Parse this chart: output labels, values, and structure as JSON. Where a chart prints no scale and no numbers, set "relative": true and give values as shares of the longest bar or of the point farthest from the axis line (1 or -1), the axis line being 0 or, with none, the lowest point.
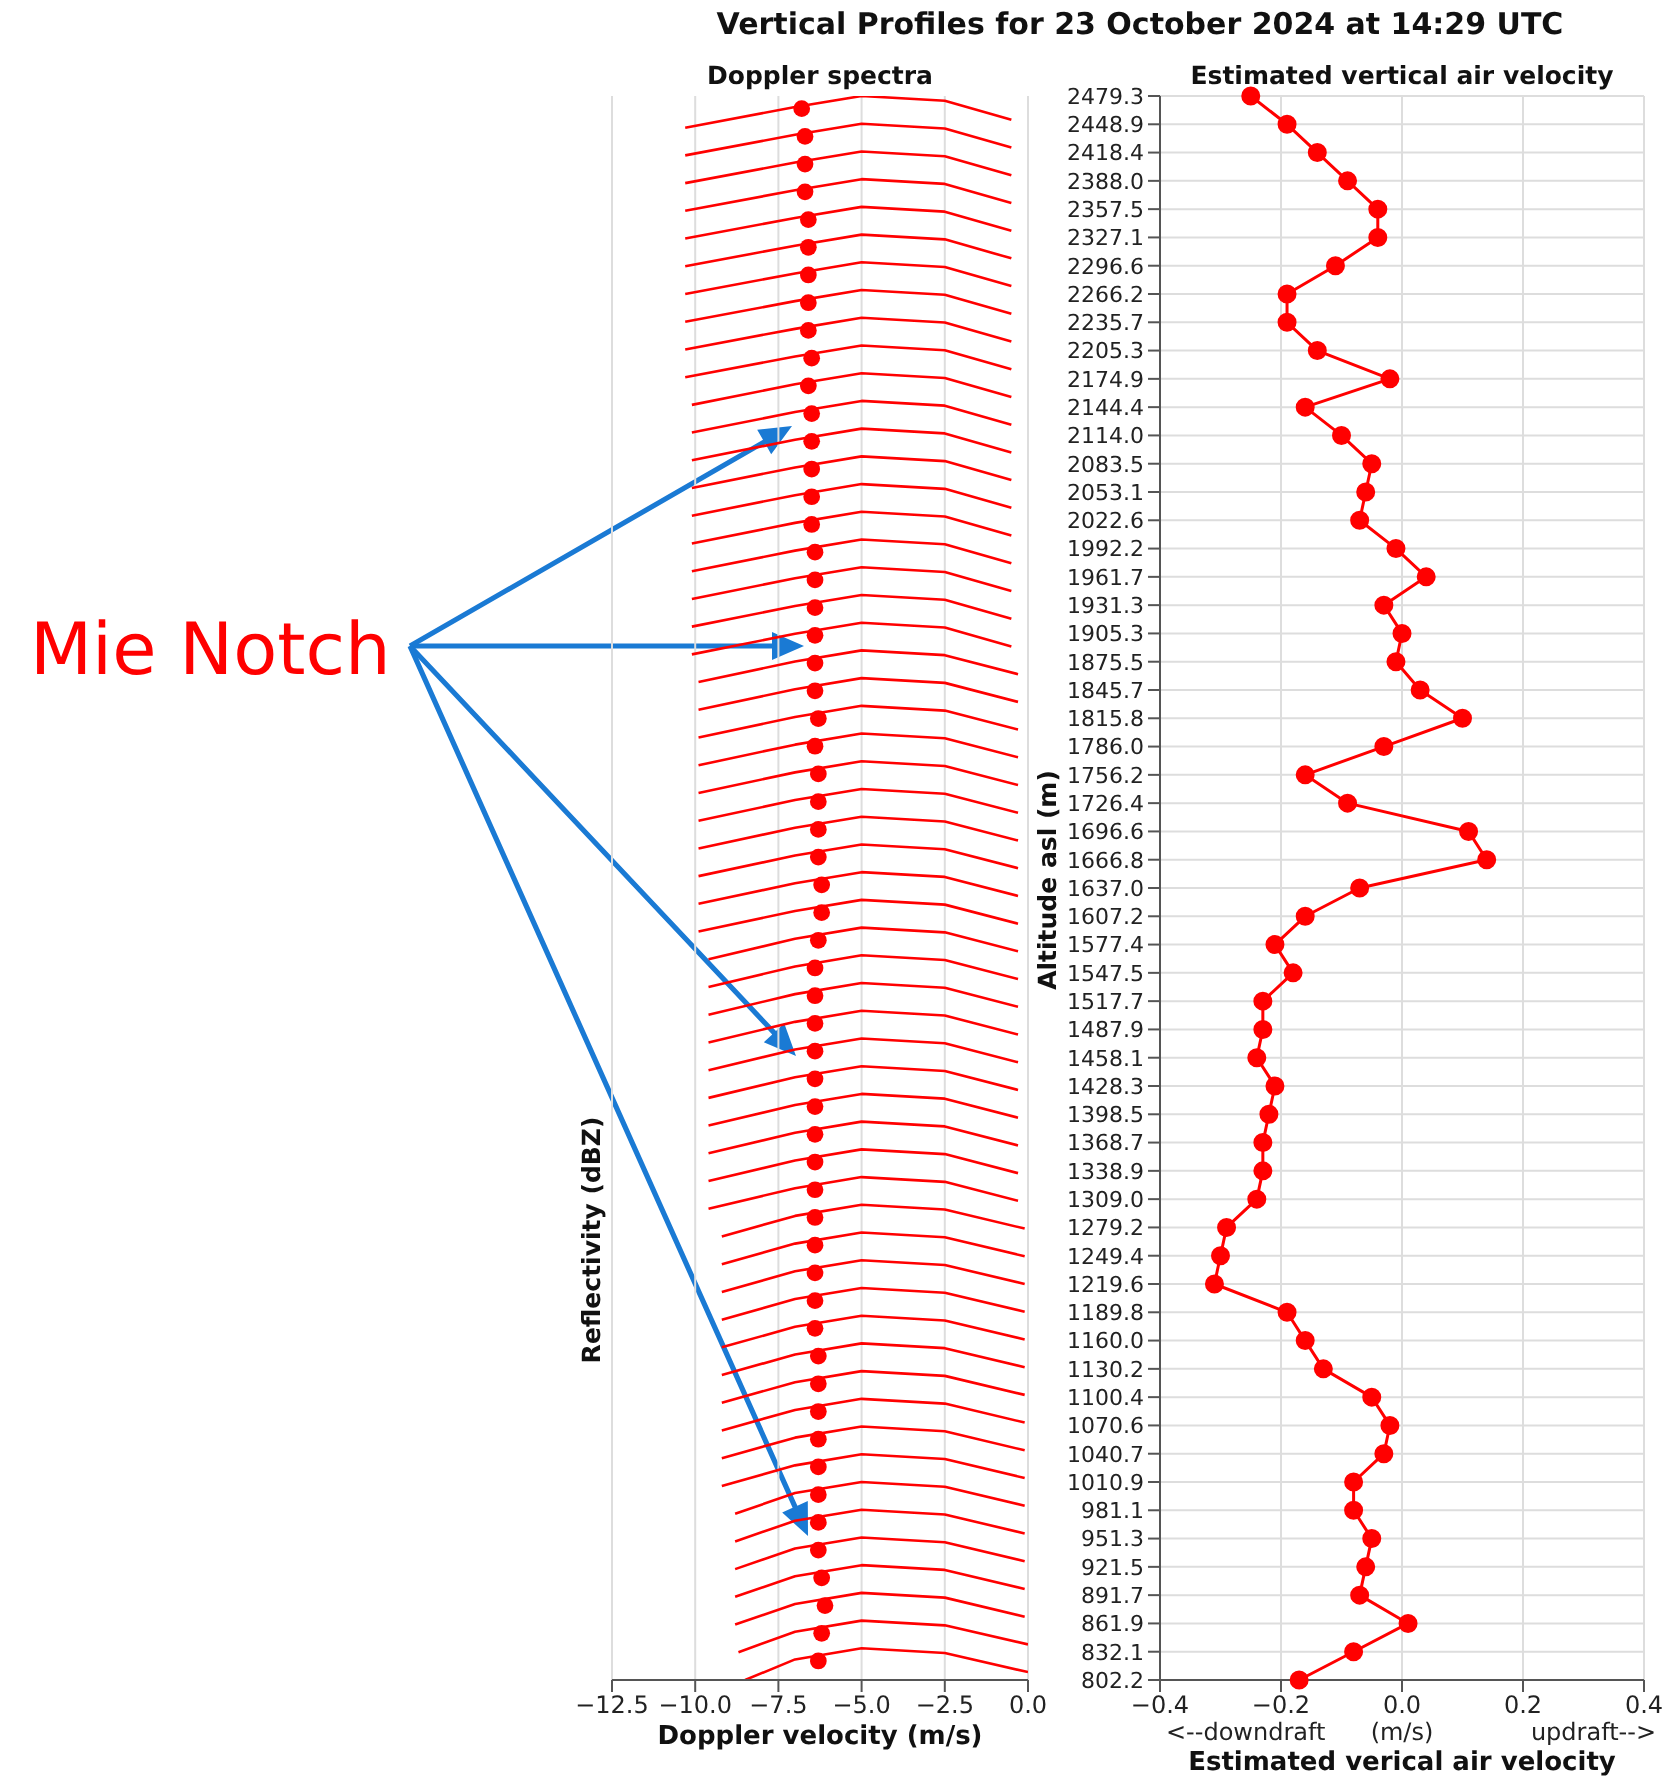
{
  "chart_data": [
    {
      "type": "line",
      "title": "Vertical Profiles for 23 October 2024 at 14:29 UTC",
      "subtitle": "Doppler spectra",
      "xlabel": "Doppler velocity (m/s)",
      "ylabel": "Reflectivity (dBZ)",
      "relative": true,
      "xlim": [
        -12.5,
        0
      ],
      "xticks": [
        {
          "value": -12.5,
          "label": "−12.5"
        },
        {
          "value": -10,
          "label": "−10.0"
        },
        {
          "value": -7.5,
          "label": "−7.5"
        },
        {
          "value": -5,
          "label": "−5.0"
        },
        {
          "value": -2.5,
          "label": "−2.5"
        },
        {
          "value": 0,
          "label": "0.0"
        }
      ],
      "grid": "x",
      "marker": "none",
      "annotations": [
        "Mie Notch"
      ],
      "series": [
        {
          "color": "#ff0000",
          "x": [
            -10.3,
            -7,
            -5,
            -2.5,
            -0.5
          ],
          "values": [
            0.98,
            0.993,
            1.0,
            0.997,
            0.985
          ]
        },
        {
          "color": "#ff0000",
          "x": [
            -10.3,
            -7,
            -5,
            -2.5,
            -0.5
          ],
          "values": [
            0.9625,
            0.9755,
            0.9825,
            0.9795,
            0.9675
          ]
        },
        {
          "color": "#ff0000",
          "x": [
            -10.3,
            -7,
            -5,
            -2.5,
            -0.5
          ],
          "values": [
            0.945,
            0.958,
            0.965,
            0.962,
            0.95
          ]
        },
        {
          "color": "#ff0000",
          "x": [
            -10.3,
            -7,
            -5,
            -2.5,
            -0.5
          ],
          "values": [
            0.9275,
            0.9405,
            0.9475,
            0.9445,
            0.9325
          ]
        },
        {
          "color": "#ff0000",
          "x": [
            -10.3,
            -7,
            -5,
            -2.5,
            -0.5
          ],
          "values": [
            0.91,
            0.923,
            0.93,
            0.927,
            0.915
          ]
        },
        {
          "color": "#ff0000",
          "x": [
            -10.3,
            -7,
            -5,
            -2.5,
            -0.5
          ],
          "values": [
            0.8925,
            0.9055,
            0.9125,
            0.9095,
            0.8975
          ]
        },
        {
          "color": "#ff0000",
          "x": [
            -10.3,
            -7,
            -5,
            -2.5,
            -0.5
          ],
          "values": [
            0.875,
            0.888,
            0.895,
            0.892,
            0.88
          ]
        },
        {
          "color": "#ff0000",
          "x": [
            -10.3,
            -7,
            -5,
            -2.5,
            -0.5
          ],
          "values": [
            0.8575,
            0.8705,
            0.8775,
            0.8745,
            0.8625
          ]
        },
        {
          "color": "#ff0000",
          "x": [
            -10.3,
            -7,
            -5,
            -2.5,
            -0.5
          ],
          "values": [
            0.84,
            0.853,
            0.86,
            0.857,
            0.845
          ]
        },
        {
          "color": "#ff0000",
          "x": [
            -10.3,
            -7,
            -5,
            -2.5,
            -0.5
          ],
          "values": [
            0.8225,
            0.8355,
            0.8425,
            0.8395,
            0.8275
          ]
        },
        {
          "color": "#ff0000",
          "x": [
            -10.1,
            -7,
            -5,
            -2.5,
            -0.5
          ],
          "values": [
            0.805,
            0.818,
            0.825,
            0.822,
            0.81
          ]
        },
        {
          "color": "#ff0000",
          "x": [
            -10.1,
            -7,
            -5,
            -2.5,
            -0.5
          ],
          "values": [
            0.7875,
            0.8005,
            0.8075,
            0.8045,
            0.7925
          ]
        },
        {
          "color": "#ff0000",
          "x": [
            -10.1,
            -7,
            -5,
            -2.5,
            -0.5
          ],
          "values": [
            0.77,
            0.783,
            0.79,
            0.787,
            0.775
          ]
        },
        {
          "color": "#ff0000",
          "x": [
            -10.1,
            -7,
            -5,
            -2.5,
            -0.5
          ],
          "values": [
            0.7525,
            0.7655,
            0.7725,
            0.7695,
            0.7575
          ]
        },
        {
          "color": "#ff0000",
          "x": [
            -10.1,
            -7,
            -5,
            -2.5,
            -0.5
          ],
          "values": [
            0.735,
            0.748,
            0.755,
            0.752,
            0.74
          ]
        },
        {
          "color": "#ff0000",
          "x": [
            -10.1,
            -7,
            -5,
            -2.5,
            -0.5
          ],
          "values": [
            0.7175,
            0.7305,
            0.7375,
            0.7345,
            0.7225
          ]
        },
        {
          "color": "#ff0000",
          "x": [
            -10.1,
            -7,
            -5,
            -2.5,
            -0.5
          ],
          "values": [
            0.7,
            0.713,
            0.72,
            0.717,
            0.705
          ]
        },
        {
          "color": "#ff0000",
          "x": [
            -10.1,
            -7,
            -5,
            -2.5,
            -0.5
          ],
          "values": [
            0.6825,
            0.6955,
            0.7025,
            0.6995,
            0.6875
          ]
        },
        {
          "color": "#ff0000",
          "x": [
            -10.1,
            -7,
            -5,
            -2.5,
            -0.5
          ],
          "values": [
            0.665,
            0.678,
            0.685,
            0.682,
            0.67
          ]
        },
        {
          "color": "#ff0000",
          "x": [
            -10.1,
            -7,
            -5,
            -2.5,
            -0.5
          ],
          "values": [
            0.6475,
            0.6605,
            0.6675,
            0.6645,
            0.6525
          ]
        },
        {
          "color": "#ff0000",
          "x": [
            -9.9,
            -7,
            -5,
            -2.5,
            -0.3
          ],
          "values": [
            0.63,
            0.643,
            0.65,
            0.647,
            0.635
          ]
        },
        {
          "color": "#ff0000",
          "x": [
            -9.9,
            -7,
            -5,
            -2.5,
            -0.3
          ],
          "values": [
            0.6125,
            0.6255,
            0.6325,
            0.6295,
            0.6175
          ]
        },
        {
          "color": "#ff0000",
          "x": [
            -9.9,
            -7,
            -5,
            -2.5,
            -0.3
          ],
          "values": [
            0.595,
            0.608,
            0.615,
            0.612,
            0.6
          ]
        },
        {
          "color": "#ff0000",
          "x": [
            -9.9,
            -7,
            -5,
            -2.5,
            -0.3
          ],
          "values": [
            0.5775,
            0.5905,
            0.5975,
            0.5945,
            0.5825
          ]
        },
        {
          "color": "#ff0000",
          "x": [
            -9.9,
            -7,
            -5,
            -2.5,
            -0.3
          ],
          "values": [
            0.56,
            0.573,
            0.58,
            0.577,
            0.565
          ]
        },
        {
          "color": "#ff0000",
          "x": [
            -9.9,
            -7,
            -5,
            -2.5,
            -0.3
          ],
          "values": [
            0.5425,
            0.5555,
            0.5625,
            0.5595,
            0.5475
          ]
        },
        {
          "color": "#ff0000",
          "x": [
            -9.9,
            -7,
            -5,
            -2.5,
            -0.3
          ],
          "values": [
            0.525,
            0.538,
            0.545,
            0.542,
            0.53
          ]
        },
        {
          "color": "#ff0000",
          "x": [
            -9.9,
            -7,
            -5,
            -2.5,
            -0.3
          ],
          "values": [
            0.5075,
            0.5205,
            0.5275,
            0.5245,
            0.5125
          ]
        },
        {
          "color": "#ff0000",
          "x": [
            -9.9,
            -7,
            -5,
            -2.5,
            -0.3
          ],
          "values": [
            0.49,
            0.503,
            0.51,
            0.507,
            0.495
          ]
        },
        {
          "color": "#ff0000",
          "x": [
            -9.9,
            -7,
            -5,
            -2.5,
            -0.3
          ],
          "values": [
            0.4725,
            0.4855,
            0.4925,
            0.4895,
            0.4775
          ]
        },
        {
          "color": "#ff0000",
          "x": [
            -9.6,
            -7,
            -5,
            -2.5,
            -0.3
          ],
          "values": [
            0.455,
            0.468,
            0.475,
            0.472,
            0.46
          ]
        },
        {
          "color": "#ff0000",
          "x": [
            -9.6,
            -7,
            -5,
            -2.5,
            -0.3
          ],
          "values": [
            0.4375,
            0.4505,
            0.4575,
            0.4545,
            0.4425
          ]
        },
        {
          "color": "#ff0000",
          "x": [
            -9.6,
            -7,
            -5,
            -2.5,
            -0.3
          ],
          "values": [
            0.42,
            0.433,
            0.44,
            0.437,
            0.425
          ]
        },
        {
          "color": "#ff0000",
          "x": [
            -9.6,
            -7,
            -5,
            -2.5,
            -0.3
          ],
          "values": [
            0.4025,
            0.4155,
            0.4225,
            0.4195,
            0.4075
          ]
        },
        {
          "color": "#ff0000",
          "x": [
            -9.6,
            -7,
            -5,
            -2.5,
            -0.3
          ],
          "values": [
            0.385,
            0.398,
            0.405,
            0.402,
            0.39
          ]
        },
        {
          "color": "#ff0000",
          "x": [
            -9.6,
            -7,
            -5,
            -2.5,
            -0.3
          ],
          "values": [
            0.3675,
            0.3805,
            0.3875,
            0.3845,
            0.3725
          ]
        },
        {
          "color": "#ff0000",
          "x": [
            -9.6,
            -7,
            -5,
            -2.5,
            -0.3
          ],
          "values": [
            0.35,
            0.363,
            0.37,
            0.367,
            0.355
          ]
        },
        {
          "color": "#ff0000",
          "x": [
            -9.6,
            -7,
            -5,
            -2.5,
            -0.3
          ],
          "values": [
            0.3325,
            0.3455,
            0.3525,
            0.3495,
            0.3375
          ]
        },
        {
          "color": "#ff0000",
          "x": [
            -9.6,
            -7,
            -5,
            -2.5,
            -0.3
          ],
          "values": [
            0.315,
            0.328,
            0.335,
            0.332,
            0.32
          ]
        },
        {
          "color": "#ff0000",
          "x": [
            -9.6,
            -7,
            -5,
            -2.5,
            -0.3
          ],
          "values": [
            0.2975,
            0.3105,
            0.3175,
            0.3145,
            0.3025
          ]
        },
        {
          "color": "#ff0000",
          "x": [
            -9.2,
            -7,
            -5,
            -2.5,
            -0.1
          ],
          "values": [
            0.28,
            0.293,
            0.3,
            0.297,
            0.285
          ]
        },
        {
          "color": "#ff0000",
          "x": [
            -9.2,
            -7,
            -5,
            -2.5,
            -0.1
          ],
          "values": [
            0.2625,
            0.2755,
            0.2825,
            0.2795,
            0.2675
          ]
        },
        {
          "color": "#ff0000",
          "x": [
            -9.2,
            -7,
            -5,
            -2.5,
            -0.1
          ],
          "values": [
            0.245,
            0.258,
            0.265,
            0.262,
            0.25
          ]
        },
        {
          "color": "#ff0000",
          "x": [
            -9.2,
            -7,
            -5,
            -2.5,
            -0.1
          ],
          "values": [
            0.2275,
            0.2405,
            0.2475,
            0.2445,
            0.2325
          ]
        },
        {
          "color": "#ff0000",
          "x": [
            -9.2,
            -7,
            -5,
            -2.5,
            -0.1
          ],
          "values": [
            0.21,
            0.223,
            0.23,
            0.227,
            0.215
          ]
        },
        {
          "color": "#ff0000",
          "x": [
            -9.2,
            -7,
            -5,
            -2.5,
            -0.1
          ],
          "values": [
            0.1925,
            0.2055,
            0.2125,
            0.2095,
            0.1975
          ]
        },
        {
          "color": "#ff0000",
          "x": [
            -9.2,
            -7,
            -5,
            -2.5,
            -0.1
          ],
          "values": [
            0.175,
            0.188,
            0.195,
            0.192,
            0.18
          ]
        },
        {
          "color": "#ff0000",
          "x": [
            -9.2,
            -7,
            -5,
            -2.5,
            -0.1
          ],
          "values": [
            0.1575,
            0.1705,
            0.1775,
            0.1745,
            0.1625
          ]
        },
        {
          "color": "#ff0000",
          "x": [
            -9.2,
            -7,
            -5,
            -2.5,
            -0.1
          ],
          "values": [
            0.14,
            0.153,
            0.16,
            0.157,
            0.145
          ]
        },
        {
          "color": "#ff0000",
          "x": [
            -9.2,
            -7,
            -5,
            -2.5,
            -0.1
          ],
          "values": [
            0.1225,
            0.1355,
            0.1425,
            0.1395,
            0.1275
          ]
        },
        {
          "color": "#ff0000",
          "x": [
            -8.8,
            -7,
            -5,
            -2.5,
            -0.1
          ],
          "values": [
            0.105,
            0.118,
            0.125,
            0.122,
            0.11
          ]
        },
        {
          "color": "#ff0000",
          "x": [
            -8.8,
            -7,
            -5,
            -2.5,
            -0.1
          ],
          "values": [
            0.0875,
            0.1005,
            0.1075,
            0.1045,
            0.0925
          ]
        },
        {
          "color": "#ff0000",
          "x": [
            -8.8,
            -7,
            -5,
            -2.5,
            -0.1
          ],
          "values": [
            0.07,
            0.083,
            0.09,
            0.087,
            0.075
          ]
        },
        {
          "color": "#ff0000",
          "x": [
            -8.8,
            -7,
            -5,
            -2.5,
            -0.1
          ],
          "values": [
            0.0525,
            0.0655,
            0.0725,
            0.0695,
            0.0575
          ]
        },
        {
          "color": "#ff0000",
          "x": [
            -8.8,
            -7,
            -5,
            -2.5,
            -0.1
          ],
          "values": [
            0.035,
            0.048,
            0.055,
            0.052,
            0.04
          ]
        },
        {
          "color": "#ff0000",
          "x": [
            -8.7,
            -7,
            -5,
            -2.5,
            0
          ],
          "values": [
            0.0175,
            0.0305,
            0.0375,
            0.0345,
            0.0225
          ]
        },
        {
          "color": "#ff0000",
          "x": [
            -8.5,
            -7,
            -5,
            -2.5,
            0
          ],
          "values": [
            0,
            0.013,
            0.02,
            0.017,
            0.005
          ]
        },
        {
          "type": "scatter",
          "color": "#ff0000",
          "marker": "circle",
          "x": [
            -6.8,
            -6.7,
            -6.7,
            -6.7,
            -6.6,
            -6.6,
            -6.6,
            -6.6,
            -6.6,
            -6.5,
            -6.6,
            -6.5,
            -6.5,
            -6.5,
            -6.5,
            -6.5,
            -6.4,
            -6.4,
            -6.4,
            -6.4,
            -6.4,
            -6.4,
            -6.3,
            -6.4,
            -6.3,
            -6.3,
            -6.3,
            -6.3,
            -6.2,
            -6.2,
            -6.3,
            -6.4,
            -6.4,
            -6.4,
            -6.4,
            -6.4,
            -6.4,
            -6.4,
            -6.4,
            -6.4,
            -6.4,
            -6.4,
            -6.4,
            -6.4,
            -6.4,
            -6.3,
            -6.3,
            -6.3,
            -6.3,
            -6.3,
            -6.3,
            -6.3,
            -6.3,
            -6.2,
            -6.1,
            -6.2,
            -6.3
          ],
          "values": [
            0.992,
            0.9745,
            0.957,
            0.9395,
            0.922,
            0.9045,
            0.887,
            0.8695,
            0.852,
            0.8345,
            0.817,
            0.7995,
            0.782,
            0.7645,
            0.747,
            0.7295,
            0.712,
            0.6945,
            0.677,
            0.6595,
            0.642,
            0.6245,
            0.607,
            0.5895,
            0.572,
            0.5545,
            0.537,
            0.5195,
            0.502,
            0.4845,
            0.467,
            0.4495,
            0.432,
            0.4145,
            0.397,
            0.3795,
            0.362,
            0.3445,
            0.327,
            0.3095,
            0.292,
            0.2745,
            0.257,
            0.2395,
            0.222,
            0.2045,
            0.187,
            0.1695,
            0.152,
            0.1345,
            0.117,
            0.0995,
            0.082,
            0.0645,
            0.047,
            0.0295,
            0.012
          ]
        }
      ]
    },
    {
      "type": "line",
      "orientation": "horizontal",
      "title": "Estimated vertical air velocity",
      "xlabel": "Estimated verical air velocity",
      "ylabel": "Altitude asl (m)",
      "annotations": [
        "<--downdraft",
        "(m/s)",
        "updraft-->"
      ],
      "grid": true,
      "marker": "circle",
      "xlim": [
        -0.4,
        0.4
      ],
      "xticks": [
        {
          "value": -0.4,
          "label": "−0.4"
        },
        {
          "value": -0.2,
          "label": "−0.2"
        },
        {
          "value": 0,
          "label": "0.0"
        },
        {
          "value": 0.2,
          "label": "0.2"
        },
        {
          "value": 0.4,
          "label": "0.4"
        }
      ],
      "categories": [
        "2479.3",
        "2448.9",
        "2418.4",
        "2388.0",
        "2357.5",
        "2327.1",
        "2296.6",
        "2266.2",
        "2235.7",
        "2205.3",
        "2174.9",
        "2144.4",
        "2114.0",
        "2083.5",
        "2053.1",
        "2022.6",
        "1992.2",
        "1961.7",
        "1931.3",
        "1905.3",
        "1875.5",
        "1845.7",
        "1815.8",
        "1786.0",
        "1756.2",
        "1726.4",
        "1696.6",
        "1666.8",
        "1637.0",
        "1607.2",
        "1577.4",
        "1547.5",
        "1517.7",
        "1487.9",
        "1458.1",
        "1428.3",
        "1398.5",
        "1368.7",
        "1338.9",
        "1309.0",
        "1279.2",
        "1249.4",
        "1219.6",
        "1189.8",
        "1160.0",
        "1130.2",
        "1100.4",
        "1070.6",
        "1040.7",
        "1010.9",
        "981.1",
        "951.3",
        "921.5",
        "891.7",
        "861.9",
        "832.1",
        "802.2"
      ],
      "series": [
        {
          "color": "#ff0000",
          "values": [
            -0.25,
            -0.19,
            -0.14,
            -0.09,
            -0.04,
            -0.04,
            -0.11,
            -0.19,
            -0.19,
            -0.14,
            -0.02,
            -0.16,
            -0.1,
            -0.05,
            -0.06,
            -0.07,
            -0.01,
            0.04,
            -0.03,
            0.0,
            -0.01,
            0.03,
            0.1,
            -0.03,
            -0.16,
            -0.09,
            0.11,
            0.14,
            -0.07,
            -0.16,
            -0.21,
            -0.18,
            -0.23,
            -0.23,
            -0.24,
            -0.21,
            -0.22,
            -0.23,
            -0.23,
            -0.24,
            -0.29,
            -0.3,
            -0.31,
            -0.19,
            -0.16,
            -0.13,
            -0.05,
            -0.02,
            -0.03,
            -0.08,
            -0.08,
            -0.05,
            -0.06,
            -0.07,
            0.01,
            -0.08,
            -0.17
          ]
        }
      ]
    }
  ]
}
